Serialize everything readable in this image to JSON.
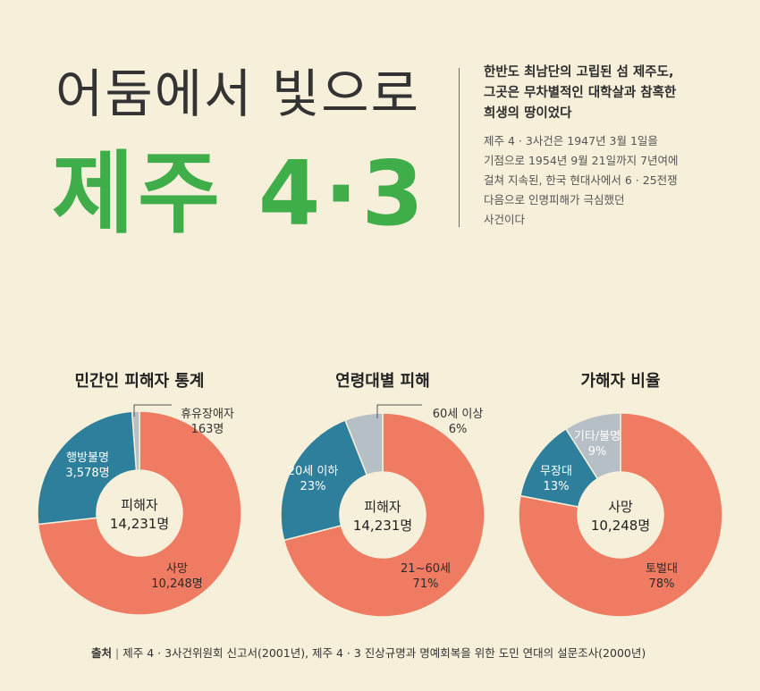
{
  "header": {
    "title_top": "어둠에서 빛으로",
    "title_main": "제주 4·3"
  },
  "intro": {
    "headline_lines": [
      "한반도 최남단의 고립된 섬 제주도,",
      "그곳은 무차별적인 대학살과 참혹한",
      "희생의 땅이었다"
    ],
    "body_lines": [
      "제주 4 · 3사건은 1947년 3월 1일을",
      "기점으로 1954년 9월 21일까지 7년여에",
      "걸쳐 지속된, 한국 현대사에서 6 · 25전쟁",
      "다음으로 인명피해가 극심했던",
      "사건이다"
    ]
  },
  "colors": {
    "background": "#f6efd9",
    "coral": "#ee7b62",
    "teal": "#2e7f9c",
    "gray": "#b7bfc6",
    "green": "#3fae4a"
  },
  "chart_data": [
    {
      "type": "pie",
      "title": "민간인 피해자 통계",
      "center_lines": [
        "피해자",
        "14,231명"
      ],
      "slices": [
        {
          "name": "사망",
          "value": 10248,
          "value_label": "10,248명",
          "color": "#ee7b62"
        },
        {
          "name": "행방불명",
          "value": 3578,
          "value_label": "3,578명",
          "color": "#2e7f9c"
        },
        {
          "name": "휴유장애자",
          "value": 163,
          "value_label": "163명",
          "color": "#b7bfc6"
        }
      ]
    },
    {
      "type": "pie",
      "title": "연령대별 피해",
      "center_lines": [
        "피해자",
        "14,231명"
      ],
      "slices": [
        {
          "name": "21~60세",
          "value": 71,
          "value_label": "71%",
          "color": "#ee7b62"
        },
        {
          "name": "20세 이하",
          "value": 23,
          "value_label": "23%",
          "color": "#2e7f9c"
        },
        {
          "name": "60세 이상",
          "value": 6,
          "value_label": "6%",
          "color": "#b7bfc6"
        }
      ]
    },
    {
      "type": "pie",
      "title": "가해자 비율",
      "center_lines": [
        "사망",
        "10,248명"
      ],
      "slices": [
        {
          "name": "토벌대",
          "value": 78,
          "value_label": "78%",
          "color": "#ee7b62"
        },
        {
          "name": "무장대",
          "value": 13,
          "value_label": "13%",
          "color": "#2e7f9c"
        },
        {
          "name": "기타/불명",
          "value": 9,
          "value_label": "9%",
          "color": "#b7bfc6"
        }
      ]
    }
  ],
  "source": {
    "label": "출처",
    "text": "제주 4 · 3사건위원회 신고서(2001년), 제주 4 · 3 진상규명과 명예회복을 위한 도민 연대의 설문조사(2000년)"
  }
}
